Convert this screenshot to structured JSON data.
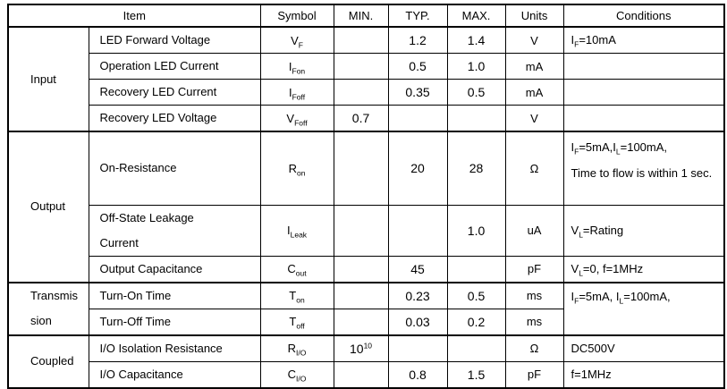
{
  "page": {
    "background": "#ffffff",
    "line_color": "#000000",
    "text_color": "#000000"
  },
  "table": {
    "headers": {
      "item": "Item",
      "symbol": "Symbol",
      "min": "MIN.",
      "typ": "TYP.",
      "max": "MAX.",
      "units": "Units",
      "conditions": "Conditions"
    },
    "rows": [
      {
        "group": [
          {
            "t": "Input"
          }
        ],
        "item": [
          {
            "t": "LED Forward Voltage"
          }
        ],
        "symbol": [
          {
            "t": "V"
          },
          {
            "sub": "F"
          }
        ],
        "typ": [
          {
            "t": "1.2"
          }
        ],
        "max": [
          {
            "t": "1.4"
          }
        ],
        "units": [
          {
            "t": "V"
          }
        ],
        "conditions": [
          {
            "t": "I"
          },
          {
            "sub": "F"
          },
          {
            "t": "=10mA"
          }
        ]
      },
      {
        "item": [
          {
            "t": "Operation LED Current"
          }
        ],
        "symbol": [
          {
            "t": "I"
          },
          {
            "sub": "Fon"
          }
        ],
        "typ": [
          {
            "t": "0.5"
          }
        ],
        "max": [
          {
            "t": "1.0"
          }
        ],
        "units": [
          {
            "t": "mA"
          }
        ]
      },
      {
        "item": [
          {
            "t": "Recovery LED Current"
          }
        ],
        "symbol": [
          {
            "t": "I"
          },
          {
            "sub": "Foff"
          }
        ],
        "typ": [
          {
            "t": "0.35"
          }
        ],
        "max": [
          {
            "t": "0.5"
          }
        ],
        "units": [
          {
            "t": "mA"
          }
        ]
      },
      {
        "item": [
          {
            "t": "Recovery LED Voltage"
          }
        ],
        "symbol": [
          {
            "t": "V"
          },
          {
            "sub": "Foff"
          }
        ],
        "min": [
          {
            "t": "0.7"
          }
        ],
        "units": [
          {
            "t": "V"
          }
        ]
      },
      {
        "group": [
          {
            "t": "Output"
          }
        ],
        "item": [
          {
            "t": "On-Resistance"
          }
        ],
        "symbol": [
          {
            "t": "R"
          },
          {
            "sub": "on"
          }
        ],
        "typ": [
          {
            "t": "20"
          }
        ],
        "max": [
          {
            "t": "28"
          }
        ],
        "units": [
          {
            "t": "Ω"
          }
        ],
        "conditions": [
          {
            "t": "I"
          },
          {
            "sub": "F"
          },
          {
            "t": "=5mA,I"
          },
          {
            "sub": "L"
          },
          {
            "t": "=100mA,"
          },
          {
            "br": true
          },
          {
            "t": "Time to flow is within 1 sec."
          }
        ]
      },
      {
        "item": [
          {
            "t": "Off-State Leakage"
          },
          {
            "br": true
          },
          {
            "t": "Current"
          }
        ],
        "symbol": [
          {
            "t": "I"
          },
          {
            "sub": "Leak"
          }
        ],
        "max": [
          {
            "t": "1.0"
          }
        ],
        "units": [
          {
            "t": "uA"
          }
        ],
        "conditions": [
          {
            "t": "V"
          },
          {
            "sub": "L"
          },
          {
            "t": "=Rating"
          }
        ]
      },
      {
        "item": [
          {
            "t": "Output Capacitance"
          }
        ],
        "symbol": [
          {
            "t": "C"
          },
          {
            "sub": "out"
          }
        ],
        "typ": [
          {
            "t": "45"
          }
        ],
        "units": [
          {
            "t": "pF"
          }
        ],
        "conditions": [
          {
            "t": "V"
          },
          {
            "sub": "L"
          },
          {
            "t": "=0, f=1MHz"
          }
        ]
      },
      {
        "group": [
          {
            "t": "Transmis"
          },
          {
            "br": true
          },
          {
            "t": "sion"
          }
        ],
        "item": [
          {
            "t": "Turn-On Time"
          }
        ],
        "symbol": [
          {
            "t": "T"
          },
          {
            "sub": "on"
          }
        ],
        "typ": [
          {
            "t": "0.23"
          }
        ],
        "max": [
          {
            "t": "0.5"
          }
        ],
        "units": [
          {
            "t": "ms"
          }
        ],
        "conditions": [
          {
            "t": "I"
          },
          {
            "sub": "F"
          },
          {
            "t": "=5mA, I"
          },
          {
            "sub": "L"
          },
          {
            "t": "=100mA,"
          }
        ]
      },
      {
        "item": [
          {
            "t": "Turn-Off Time"
          }
        ],
        "symbol": [
          {
            "t": "T"
          },
          {
            "sub": "off"
          }
        ],
        "typ": [
          {
            "t": "0.03"
          }
        ],
        "max": [
          {
            "t": "0.2"
          }
        ],
        "units": [
          {
            "t": "ms"
          }
        ]
      },
      {
        "group": [
          {
            "t": "Coupled"
          }
        ],
        "item": [
          {
            "t": "I/O Isolation Resistance"
          }
        ],
        "symbol": [
          {
            "t": "R"
          },
          {
            "sub": "I/O"
          }
        ],
        "min": [
          {
            "t": "10"
          },
          {
            "sup": "10"
          }
        ],
        "units": [
          {
            "t": "Ω"
          }
        ],
        "conditions": [
          {
            "t": "DC500V"
          }
        ]
      },
      {
        "item": [
          {
            "t": "I/O Capacitance"
          }
        ],
        "symbol": [
          {
            "t": "C"
          },
          {
            "sub": "I/O"
          }
        ],
        "typ": [
          {
            "t": "0.8"
          }
        ],
        "max": [
          {
            "t": "1.5"
          }
        ],
        "units": [
          {
            "t": "pF"
          }
        ],
        "conditions": [
          {
            "t": "f=1MHz"
          }
        ]
      }
    ]
  }
}
